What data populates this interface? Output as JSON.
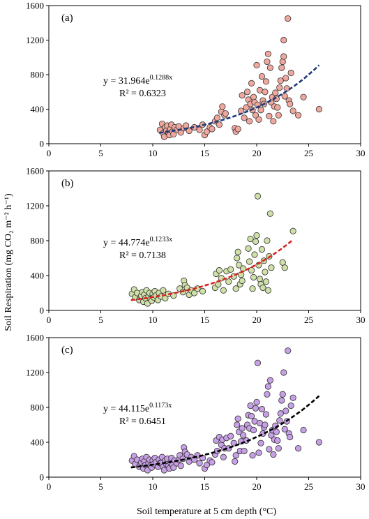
{
  "y_axis_label": "Soil Respiration (mg CO₂ m⁻² h⁻¹)",
  "x_axis_label": "Soil temperature at 5 cm depth (°C)",
  "chart_data": [
    {
      "type": "scatter",
      "panel": "(a)",
      "xlim": [
        0,
        30
      ],
      "ylim": [
        0,
        1600
      ],
      "xticks": [
        "0",
        "5",
        "10",
        "15",
        "20",
        "25",
        "30"
      ],
      "yticks": [
        "0",
        "400",
        "800",
        "1200",
        "1600"
      ],
      "marker_color": "#f0a89e",
      "trend_color": "#1f3a7a",
      "equation": {
        "prefix": "y = 31.964e",
        "exponent": "0.1288x"
      },
      "r2": "R² = 0.6323",
      "fit": {
        "a": 31.964,
        "b": 0.1288,
        "x_range": [
          10.6,
          26
        ]
      },
      "points": [
        [
          10.7,
          160
        ],
        [
          10.9,
          230
        ],
        [
          11.0,
          120
        ],
        [
          11.1,
          80
        ],
        [
          11.2,
          190
        ],
        [
          11.3,
          150
        ],
        [
          11.4,
          210
        ],
        [
          11.5,
          130
        ],
        [
          11.6,
          100
        ],
        [
          11.7,
          170
        ],
        [
          11.8,
          220
        ],
        [
          11.9,
          140
        ],
        [
          12.0,
          110
        ],
        [
          12.1,
          190
        ],
        [
          12.3,
          160
        ],
        [
          12.5,
          200
        ],
        [
          12.7,
          130
        ],
        [
          13.0,
          180
        ],
        [
          13.2,
          210
        ],
        [
          13.5,
          150
        ],
        [
          14.0,
          190
        ],
        [
          14.5,
          160
        ],
        [
          14.8,
          220
        ],
        [
          15.0,
          100
        ],
        [
          15.2,
          140
        ],
        [
          15.5,
          190
        ],
        [
          15.7,
          170
        ],
        [
          16.0,
          260
        ],
        [
          16.2,
          300
        ],
        [
          16.4,
          220
        ],
        [
          16.6,
          370
        ],
        [
          16.7,
          430
        ],
        [
          16.9,
          330
        ],
        [
          17.0,
          350
        ],
        [
          17.9,
          180
        ],
        [
          18.0,
          140
        ],
        [
          18.2,
          170
        ],
        [
          18.5,
          380
        ],
        [
          18.6,
          560
        ],
        [
          18.8,
          300
        ],
        [
          19.0,
          420
        ],
        [
          19.1,
          600
        ],
        [
          19.2,
          510
        ],
        [
          19.3,
          260
        ],
        [
          19.4,
          460
        ],
        [
          19.5,
          700
        ],
        [
          19.6,
          390
        ],
        [
          19.7,
          540
        ],
        [
          19.8,
          480
        ],
        [
          19.9,
          330
        ],
        [
          20.0,
          910
        ],
        [
          20.1,
          450
        ],
        [
          20.2,
          280
        ],
        [
          20.3,
          620
        ],
        [
          20.4,
          390
        ],
        [
          20.5,
          780
        ],
        [
          20.6,
          500
        ],
        [
          20.7,
          460
        ],
        [
          20.8,
          600
        ],
        [
          20.9,
          720
        ],
        [
          21.0,
          950
        ],
        [
          21.1,
          1040
        ],
        [
          21.2,
          320
        ],
        [
          21.3,
          880
        ],
        [
          21.4,
          480
        ],
        [
          21.5,
          540
        ],
        [
          21.6,
          260
        ],
        [
          21.7,
          430
        ],
        [
          21.8,
          590
        ],
        [
          21.9,
          520
        ],
        [
          22.0,
          420
        ],
        [
          22.1,
          330
        ],
        [
          22.2,
          650
        ],
        [
          22.3,
          730
        ],
        [
          22.4,
          880
        ],
        [
          22.5,
          950
        ],
        [
          22.6,
          1200
        ],
        [
          22.6,
          1010
        ],
        [
          22.7,
          550
        ],
        [
          22.8,
          760
        ],
        [
          22.9,
          640
        ],
        [
          23.0,
          1450
        ],
        [
          23.1,
          500
        ],
        [
          23.2,
          460
        ],
        [
          23.3,
          820
        ],
        [
          23.5,
          380
        ],
        [
          24.0,
          330
        ],
        [
          24.5,
          540
        ],
        [
          26.0,
          400
        ]
      ]
    },
    {
      "type": "scatter",
      "panel": "(b)",
      "xlim": [
        0,
        30
      ],
      "ylim": [
        0,
        1600
      ],
      "xticks": [
        "0",
        "5",
        "10",
        "15",
        "20",
        "25",
        "30"
      ],
      "yticks": [
        "0",
        "400",
        "800",
        "1200",
        "1600"
      ],
      "marker_color": "#cfe0a8",
      "trend_color": "#d8231f",
      "equation": {
        "prefix": "y = 44.774e",
        "exponent": "0.1233x"
      },
      "r2": "R² = 0.7138",
      "fit": {
        "a": 44.774,
        "b": 0.1233,
        "x_range": [
          7.9,
          23.4
        ]
      },
      "points": [
        [
          8.0,
          190
        ],
        [
          8.2,
          240
        ],
        [
          8.3,
          150
        ],
        [
          8.5,
          200
        ],
        [
          8.7,
          120
        ],
        [
          8.9,
          170
        ],
        [
          9.0,
          210
        ],
        [
          9.1,
          100
        ],
        [
          9.2,
          180
        ],
        [
          9.3,
          140
        ],
        [
          9.4,
          230
        ],
        [
          9.5,
          80
        ],
        [
          9.6,
          160
        ],
        [
          9.7,
          200
        ],
        [
          9.8,
          130
        ],
        [
          9.9,
          110
        ],
        [
          10.0,
          190
        ],
        [
          10.1,
          150
        ],
        [
          10.2,
          220
        ],
        [
          10.3,
          170
        ],
        [
          10.5,
          120
        ],
        [
          10.6,
          200
        ],
        [
          10.8,
          160
        ],
        [
          11.0,
          230
        ],
        [
          11.2,
          140
        ],
        [
          11.5,
          190
        ],
        [
          12.0,
          170
        ],
        [
          12.6,
          250
        ],
        [
          12.9,
          210
        ],
        [
          13.0,
          340
        ],
        [
          13.1,
          290
        ],
        [
          13.3,
          260
        ],
        [
          13.5,
          180
        ],
        [
          13.7,
          230
        ],
        [
          14.0,
          200
        ],
        [
          14.3,
          250
        ],
        [
          14.8,
          220
        ],
        [
          16.0,
          260
        ],
        [
          16.1,
          420
        ],
        [
          16.3,
          300
        ],
        [
          16.4,
          460
        ],
        [
          16.6,
          370
        ],
        [
          16.8,
          230
        ],
        [
          17.1,
          450
        ],
        [
          17.3,
          330
        ],
        [
          17.5,
          470
        ],
        [
          17.8,
          390
        ],
        [
          18.0,
          250
        ],
        [
          18.1,
          600
        ],
        [
          18.2,
          670
        ],
        [
          18.3,
          520
        ],
        [
          18.4,
          300
        ],
        [
          18.5,
          410
        ],
        [
          18.6,
          340
        ],
        [
          18.7,
          480
        ],
        [
          19.2,
          710
        ],
        [
          19.3,
          560
        ],
        [
          19.4,
          820
        ],
        [
          19.5,
          460
        ],
        [
          19.6,
          250
        ],
        [
          19.7,
          380
        ],
        [
          19.8,
          640
        ],
        [
          19.9,
          790
        ],
        [
          20.0,
          860
        ],
        [
          20.1,
          1310
        ],
        [
          20.2,
          520
        ],
        [
          20.3,
          360
        ],
        [
          20.4,
          300
        ],
        [
          20.5,
          700
        ],
        [
          20.6,
          260
        ],
        [
          20.7,
          570
        ],
        [
          20.8,
          440
        ],
        [
          20.9,
          330
        ],
        [
          21.0,
          800
        ],
        [
          21.1,
          230
        ],
        [
          21.2,
          620
        ],
        [
          21.3,
          1110
        ],
        [
          21.4,
          490
        ],
        [
          22.5,
          550
        ],
        [
          22.7,
          490
        ],
        [
          23.5,
          910
        ]
      ]
    },
    {
      "type": "scatter",
      "panel": "(c)",
      "xlim": [
        0,
        30
      ],
      "ylim": [
        0,
        1600
      ],
      "xticks": [
        "0",
        "5",
        "10",
        "15",
        "20",
        "25",
        "30"
      ],
      "yticks": [
        "0",
        "400",
        "800",
        "1200",
        "1600"
      ],
      "marker_color": "#c8a0e6",
      "trend_color": "#000000",
      "equation": {
        "prefix": "y = 44.115e",
        "exponent": "0.1173x"
      },
      "r2": "R² = 0.6451",
      "fit": {
        "a": 44.115,
        "b": 0.1173,
        "x_range": [
          7.9,
          26
        ]
      },
      "points": [
        [
          8.0,
          190
        ],
        [
          8.2,
          240
        ],
        [
          8.3,
          150
        ],
        [
          8.5,
          200
        ],
        [
          8.7,
          120
        ],
        [
          8.9,
          170
        ],
        [
          9.0,
          210
        ],
        [
          9.1,
          100
        ],
        [
          9.2,
          180
        ],
        [
          9.3,
          140
        ],
        [
          9.4,
          230
        ],
        [
          9.5,
          80
        ],
        [
          9.6,
          160
        ],
        [
          9.7,
          200
        ],
        [
          9.8,
          130
        ],
        [
          9.9,
          110
        ],
        [
          10.0,
          190
        ],
        [
          10.1,
          150
        ],
        [
          10.2,
          220
        ],
        [
          10.3,
          170
        ],
        [
          10.5,
          120
        ],
        [
          10.6,
          200
        ],
        [
          10.7,
          160
        ],
        [
          10.8,
          160
        ],
        [
          10.9,
          230
        ],
        [
          11.0,
          120
        ],
        [
          11.1,
          80
        ],
        [
          11.2,
          190
        ],
        [
          11.3,
          150
        ],
        [
          11.4,
          210
        ],
        [
          11.5,
          130
        ],
        [
          11.6,
          100
        ],
        [
          11.7,
          170
        ],
        [
          11.8,
          220
        ],
        [
          11.9,
          140
        ],
        [
          12.0,
          110
        ],
        [
          12.1,
          190
        ],
        [
          12.3,
          160
        ],
        [
          12.5,
          200
        ],
        [
          12.6,
          250
        ],
        [
          12.7,
          130
        ],
        [
          12.9,
          210
        ],
        [
          13.0,
          340
        ],
        [
          13.1,
          290
        ],
        [
          13.3,
          260
        ],
        [
          13.5,
          180
        ],
        [
          13.7,
          230
        ],
        [
          14.0,
          200
        ],
        [
          14.3,
          250
        ],
        [
          14.5,
          160
        ],
        [
          14.8,
          220
        ],
        [
          15.0,
          100
        ],
        [
          15.2,
          140
        ],
        [
          15.5,
          190
        ],
        [
          15.7,
          170
        ],
        [
          16.0,
          260
        ],
        [
          16.1,
          420
        ],
        [
          16.2,
          300
        ],
        [
          16.4,
          460
        ],
        [
          16.6,
          370
        ],
        [
          16.7,
          430
        ],
        [
          16.8,
          230
        ],
        [
          16.9,
          330
        ],
        [
          17.1,
          450
        ],
        [
          17.3,
          330
        ],
        [
          17.5,
          470
        ],
        [
          17.8,
          390
        ],
        [
          17.9,
          180
        ],
        [
          18.0,
          250
        ],
        [
          18.1,
          600
        ],
        [
          18.2,
          670
        ],
        [
          18.3,
          520
        ],
        [
          18.4,
          300
        ],
        [
          18.5,
          410
        ],
        [
          18.6,
          560
        ],
        [
          18.7,
          480
        ],
        [
          18.8,
          300
        ],
        [
          19.0,
          420
        ],
        [
          19.1,
          600
        ],
        [
          19.2,
          710
        ],
        [
          19.3,
          560
        ],
        [
          19.4,
          820
        ],
        [
          19.5,
          700
        ],
        [
          19.6,
          250
        ],
        [
          19.7,
          540
        ],
        [
          19.8,
          640
        ],
        [
          19.9,
          790
        ],
        [
          20.0,
          860
        ],
        [
          20.1,
          1310
        ],
        [
          20.2,
          280
        ],
        [
          20.3,
          620
        ],
        [
          20.4,
          390
        ],
        [
          20.5,
          780
        ],
        [
          20.6,
          500
        ],
        [
          20.7,
          570
        ],
        [
          20.8,
          600
        ],
        [
          20.9,
          720
        ],
        [
          21.0,
          950
        ],
        [
          21.1,
          1040
        ],
        [
          21.2,
          320
        ],
        [
          21.3,
          1110
        ],
        [
          21.4,
          480
        ],
        [
          21.5,
          540
        ],
        [
          21.6,
          260
        ],
        [
          21.7,
          430
        ],
        [
          21.8,
          590
        ],
        [
          21.9,
          520
        ],
        [
          22.0,
          420
        ],
        [
          22.1,
          330
        ],
        [
          22.2,
          650
        ],
        [
          22.3,
          730
        ],
        [
          22.4,
          880
        ],
        [
          22.5,
          950
        ],
        [
          22.6,
          1200
        ],
        [
          22.7,
          550
        ],
        [
          22.8,
          760
        ],
        [
          22.9,
          640
        ],
        [
          23.0,
          1450
        ],
        [
          23.1,
          500
        ],
        [
          23.2,
          460
        ],
        [
          23.3,
          820
        ],
        [
          23.5,
          910
        ],
        [
          24.0,
          330
        ],
        [
          24.5,
          540
        ],
        [
          26.0,
          400
        ]
      ]
    }
  ]
}
